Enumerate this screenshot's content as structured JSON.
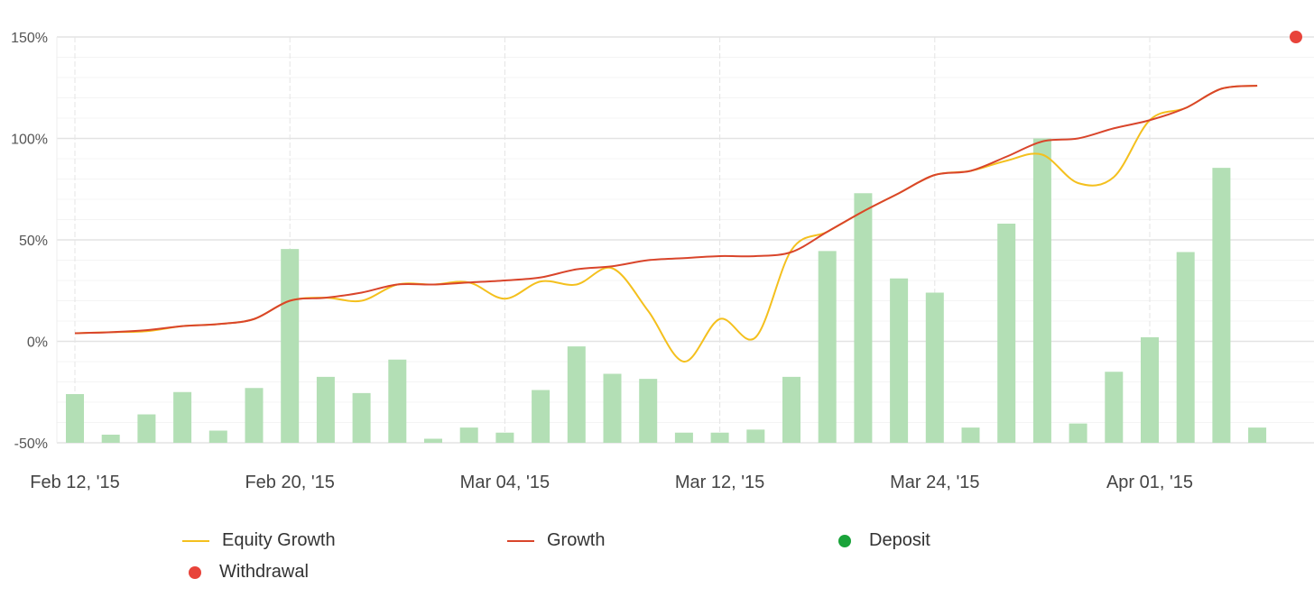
{
  "chart_data": {
    "type": "bar+line",
    "title": "",
    "xlabel": "",
    "ylabel": "",
    "ylim": [
      -50,
      150
    ],
    "yticks": [
      "150%",
      "100%",
      "50%",
      "0%",
      "-50%"
    ],
    "ytick_values": [
      150,
      100,
      50,
      0,
      -50
    ],
    "xtick_labels": [
      "Feb 12, '15",
      "Feb 20, '15",
      "Mar 04, '15",
      "Mar 12, '15",
      "Mar 24, '15",
      "Apr 01, '15"
    ],
    "xtick_indices": [
      0,
      6,
      12,
      18,
      24,
      30
    ],
    "grid": true,
    "legend_placement": "bottom",
    "bars": [
      -26,
      -46,
      -36,
      -25,
      -44,
      -23,
      45.5,
      -17.5,
      -25.5,
      -9,
      -48,
      -42.5,
      -45,
      -24,
      -2.5,
      -16,
      -18.5,
      -45,
      -45,
      -43.5,
      -17.5,
      44.5,
      73,
      31,
      24,
      -42.5,
      58,
      100,
      -40.5,
      -15,
      2,
      44,
      85.5,
      -42.5
    ],
    "series": [
      {
        "name": "Equity Growth",
        "color": "#f4c01e",
        "values": [
          4,
          4.5,
          5,
          7.5,
          8.5,
          11,
          20,
          21.5,
          20,
          28,
          28,
          29,
          21,
          29.5,
          28,
          36,
          15,
          -10,
          11,
          2,
          45,
          54,
          64,
          73,
          82,
          84,
          89,
          92,
          78,
          81,
          109,
          115,
          124.5,
          126
        ]
      },
      {
        "name": "Growth",
        "color": "#d9452b",
        "values": [
          4,
          4.5,
          5.5,
          7.5,
          8.5,
          11,
          20,
          21.5,
          24,
          28,
          28,
          29,
          30,
          31.5,
          35.5,
          37,
          40,
          41,
          42,
          42,
          44,
          54,
          64,
          73,
          82,
          84,
          91,
          98.5,
          100,
          105,
          109,
          115,
          124.5,
          126
        ]
      }
    ],
    "withdrawal_point": {
      "value": 150,
      "color": "#e8433a"
    },
    "bar_color": "#b3dfb5",
    "legend": [
      {
        "label": "Equity Growth",
        "kind": "line",
        "color": "#f4c01e"
      },
      {
        "label": "Growth",
        "kind": "line",
        "color": "#d9452b"
      },
      {
        "label": "Deposit",
        "kind": "dot",
        "color": "#1aa33a"
      },
      {
        "label": "Withdrawal",
        "kind": "dot",
        "color": "#e8433a"
      }
    ]
  }
}
